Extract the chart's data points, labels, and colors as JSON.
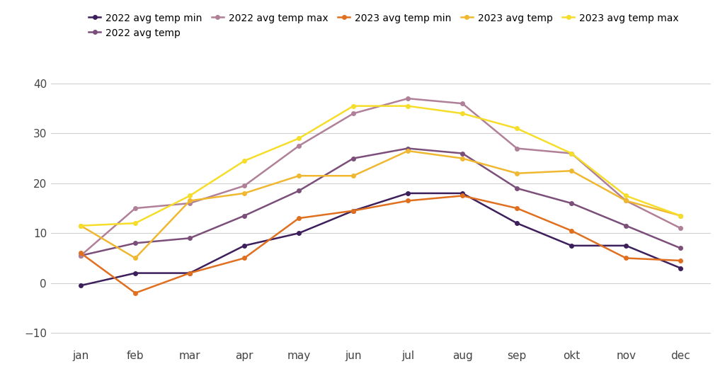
{
  "months": [
    "jan",
    "feb",
    "mar",
    "apr",
    "may",
    "jun",
    "jul",
    "aug",
    "sep",
    "okt",
    "nov",
    "dec"
  ],
  "y2022_min": [
    -0.5,
    2.0,
    2.0,
    7.5,
    10.0,
    14.5,
    18.0,
    18.0,
    12.0,
    7.5,
    7.5,
    3.0
  ],
  "y2022_avg": [
    5.5,
    8.0,
    9.0,
    13.5,
    18.5,
    25.0,
    27.0,
    26.0,
    19.0,
    16.0,
    11.5,
    7.0
  ],
  "y2022_max": [
    5.5,
    15.0,
    16.0,
    19.5,
    27.5,
    34.0,
    37.0,
    36.0,
    27.0,
    26.0,
    16.5,
    11.0
  ],
  "y2023_min": [
    6.0,
    -2.0,
    2.0,
    5.0,
    13.0,
    14.5,
    16.5,
    17.5,
    15.0,
    10.5,
    5.0,
    4.5
  ],
  "y2023_avg": [
    11.5,
    5.0,
    16.5,
    18.0,
    21.5,
    21.5,
    26.5,
    25.0,
    22.0,
    22.5,
    16.5,
    13.5
  ],
  "y2023_max": [
    11.5,
    12.0,
    17.5,
    24.5,
    29.0,
    35.5,
    35.5,
    34.0,
    31.0,
    26.0,
    17.5,
    13.5
  ],
  "color_2022_min": "#3d1f5c",
  "color_2022_avg": "#7b4f7a",
  "color_2022_max": "#b08098",
  "color_2023_min": "#e07020",
  "color_2023_avg": "#f0b830",
  "color_2023_max": "#f5dd2a",
  "ylim_min": -12,
  "ylim_max": 43,
  "yticks": [
    -10,
    0,
    10,
    20,
    30,
    40
  ],
  "background_color": "#ffffff",
  "grid_color": "#d0d0d0"
}
